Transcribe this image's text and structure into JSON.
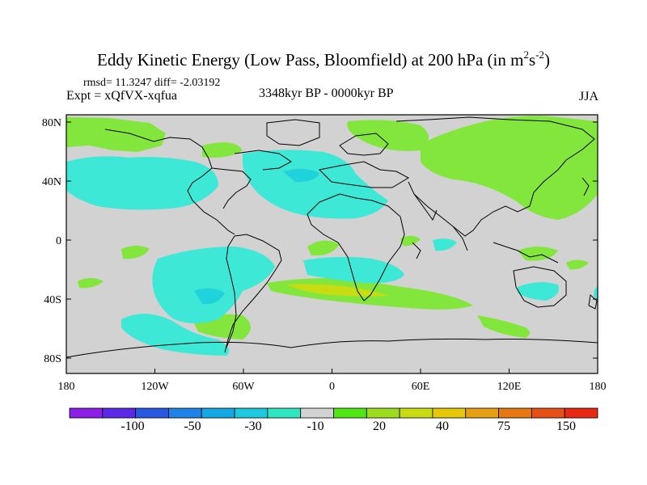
{
  "title": {
    "text": "Eddy Kinetic Energy (Low Pass, Bloomfield) at 200 hPa (in m",
    "sup1": "2",
    "mid": "s",
    "sup2": "-2",
    "close": ")"
  },
  "subtitle": {
    "rmsd": "rmsd= 11.3247 diff= -2.03192",
    "expt": "Expt = xQfVX-xqfua",
    "period": "3348kyr BP - 0000kyr BP",
    "season": "JJA"
  },
  "axes": {
    "x_ticks": [
      "180",
      "120W",
      "60W",
      "0",
      "60E",
      "120E",
      "180"
    ],
    "y_ticks": [
      "80N",
      "40N",
      "0",
      "40S",
      "80S"
    ]
  },
  "colorbar": {
    "colors": [
      "#8c1ee6",
      "#5a28e6",
      "#2858e0",
      "#1e82e6",
      "#14a8e6",
      "#1ec8dc",
      "#2ee6c0",
      "#d2d2d2",
      "#50e614",
      "#9cdc1e",
      "#c8dc14",
      "#e6c80a",
      "#e6a014",
      "#e67814",
      "#e65014",
      "#e62814"
    ],
    "labels": [
      "-100",
      "-50",
      "-30",
      "-10",
      "20",
      "40",
      "75",
      "150"
    ]
  },
  "legend_colors": {
    "cyan_light": "#3ee8d6",
    "cyan_mid": "#20d2dc",
    "green_light": "#82e63c",
    "green_mid": "#50e614",
    "yellow": "#c8dc14",
    "neutral": "#d2d2d2"
  }
}
